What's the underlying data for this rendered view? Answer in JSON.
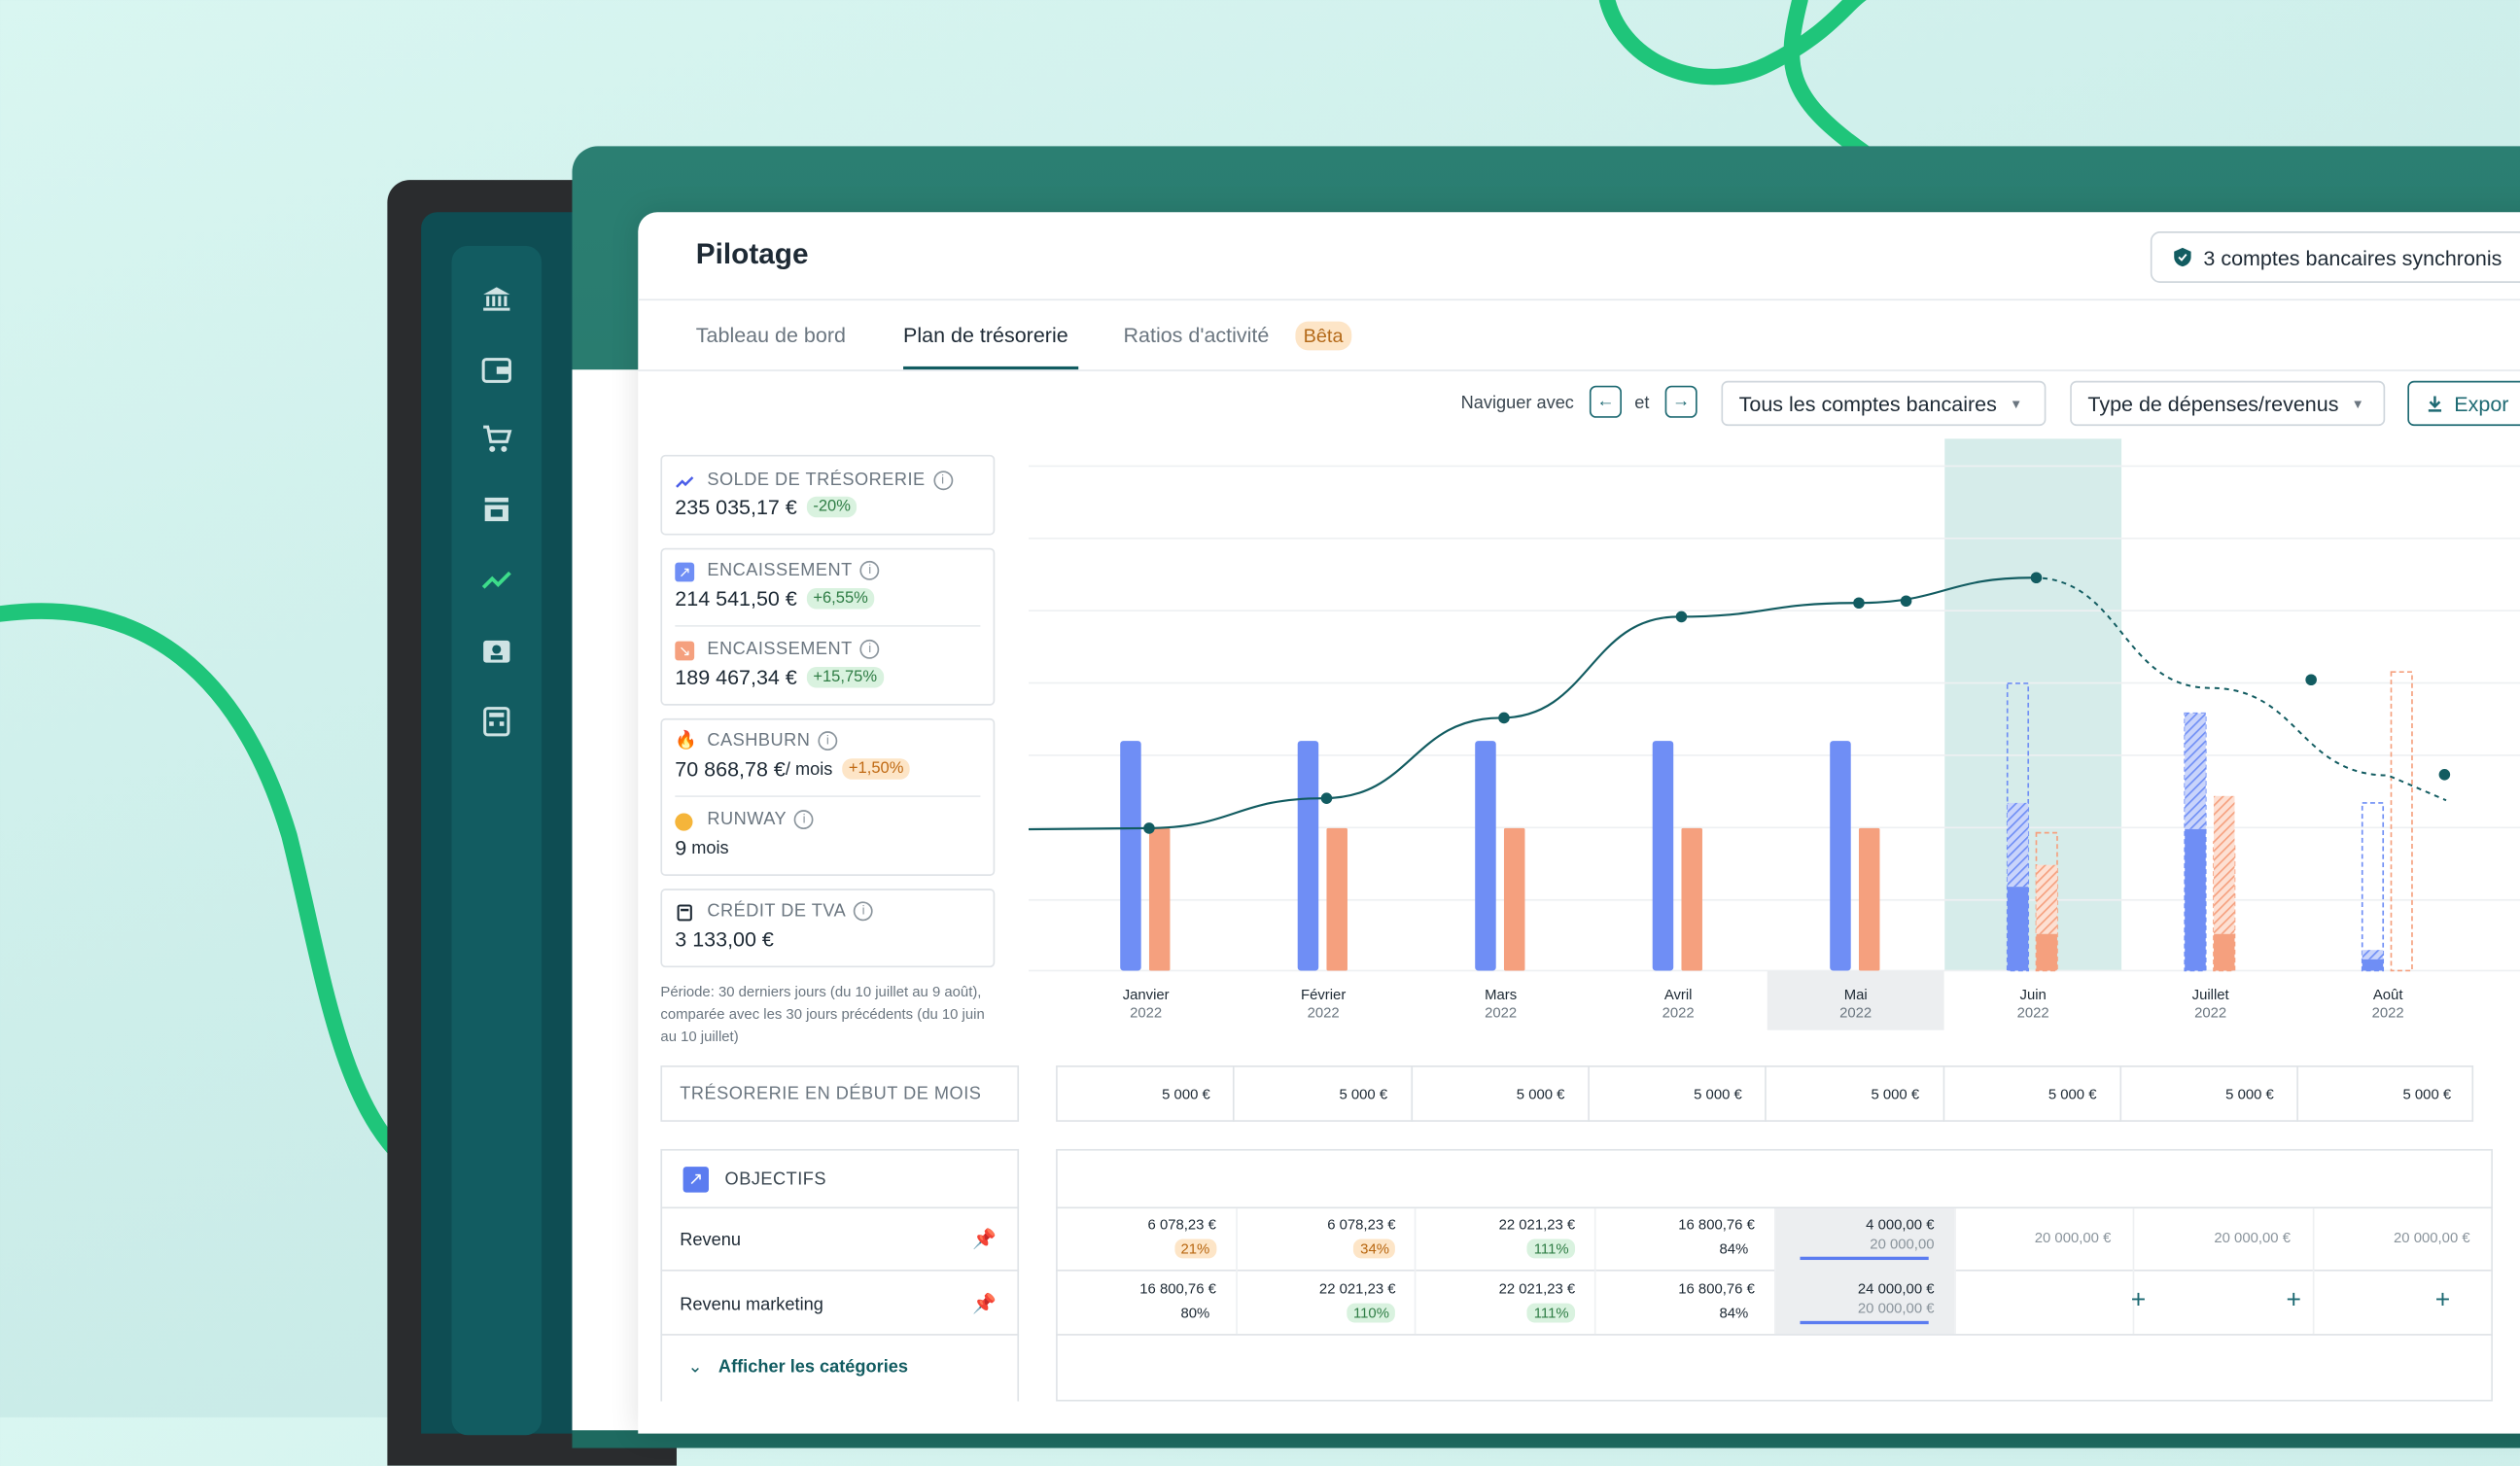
{
  "app": {
    "title": "Pilotage",
    "sync_button": "3 comptes bancaires synchronis"
  },
  "sidebar_icons": [
    "bank-icon",
    "wallet-icon",
    "cart-icon",
    "store-icon",
    "trend-icon",
    "contact-folder-icon",
    "calculator-icon"
  ],
  "tabs": [
    {
      "label": "Tableau de bord"
    },
    {
      "label": "Plan de trésorerie"
    },
    {
      "label": "Ratios d'activité"
    }
  ],
  "beta_badge": "Bêta",
  "toolbar": {
    "nav_label": "Naviguer avec",
    "nav_left_key": "←",
    "nav_and": "et",
    "nav_right_key": "→",
    "accounts_dropdown": "Tous les comptes bancaires",
    "type_dropdown": "Type de dépenses/revenus",
    "export_label": "Expor"
  },
  "kpis": {
    "solde_label": "SOLDE DE TRÉSORERIE",
    "solde_value": "235 035,17 €",
    "solde_delta": "-20%",
    "enc1_label": "ENCAISSEMENT",
    "enc1_value": "214 541,50 €",
    "enc1_delta": "+6,55%",
    "enc2_label": "ENCAISSEMENT",
    "enc2_value": "189 467,34 €",
    "enc2_delta": "+15,75%",
    "cashburn_label": "CASHBURN",
    "cashburn_value": "70 868,78 €",
    "cashburn_unit": "/ mois",
    "cashburn_delta": "+1,50%",
    "runway_label": "RUNWAY",
    "runway_value": "9",
    "runway_unit": "mois",
    "tva_label": "CRÉDIT DE TVA",
    "tva_value": "3 133,00 €"
  },
  "periode_note": "Période: 30 derniers jours (du 10 juillet au 9 août), comparée avec les 30 jours précédents (du 10 juin au 10 juillet)",
  "chart_data": {
    "type": "bar",
    "categories": [
      "Janvier",
      "Février",
      "Mars",
      "Avril",
      "Mai",
      "Juin",
      "Juillet",
      "Août"
    ],
    "years": [
      "2022",
      "2022",
      "2022",
      "2022",
      "2022",
      "2022",
      "2022",
      "2022"
    ],
    "series": [
      {
        "values": [
          100,
          100,
          100,
          100,
          100,
          73,
          112,
          9
        ]
      },
      {
        "values": [
          62,
          62,
          62,
          62,
          62,
          16,
          16,
          0
        ]
      }
    ],
    "forecast_totals": {
      "blue": [
        0,
        0,
        0,
        0,
        0,
        125,
        112,
        73
      ],
      "orange": [
        0,
        0,
        0,
        0,
        0,
        60,
        56,
        130
      ]
    },
    "line": [
      62,
      75,
      110,
      154,
      160,
      171,
      123,
      85
    ],
    "highlight": "Juin",
    "colors": {
      "blue": "#6f8ef5",
      "orange": "#f5a07e",
      "line": "#125c61",
      "highlight": "#d6ecea"
    }
  },
  "tresorerie": {
    "label": "TRÉSORERIE EN DÉBUT DE MOIS",
    "values": [
      "5 000 €",
      "5 000 €",
      "5 000 €",
      "5 000 €",
      "5 000 €",
      "5 000 €",
      "5 000 €",
      "5 000 €"
    ]
  },
  "objectifs": {
    "title": "OBJECTIFS",
    "rows": [
      {
        "label": "Revenu",
        "cells": [
          {
            "v": "6 078,23 €",
            "p": "21%",
            "c": "orange"
          },
          {
            "v": "6 078,23 €",
            "p": "34%",
            "c": "orange"
          },
          {
            "v": "22 021,23 €",
            "p": "111%",
            "c": "green"
          },
          {
            "v": "16 800,76 €",
            "p": "84%",
            "c": "none"
          },
          {
            "v": "4 000,00 €",
            "p": "20 000,00",
            "c": "none"
          }
        ],
        "future": [
          "20 000,00 €",
          "20 000,00 €",
          "20 000,00 €"
        ]
      },
      {
        "label": "Revenu marketing",
        "cells": [
          {
            "v": "16 800,76 €",
            "p": "80%",
            "c": "none"
          },
          {
            "v": "22 021,23 €",
            "p": "110%",
            "c": "green"
          },
          {
            "v": "22 021,23 €",
            "p": "111%",
            "c": "green"
          },
          {
            "v": "16 800,76 €",
            "p": "84%",
            "c": "none"
          },
          {
            "v": "24 000,00 €",
            "p": "20 000,00 €",
            "c": "none"
          }
        ],
        "future": [
          "+",
          "+",
          "+"
        ]
      }
    ],
    "show_categories": "Afficher les catégories"
  }
}
